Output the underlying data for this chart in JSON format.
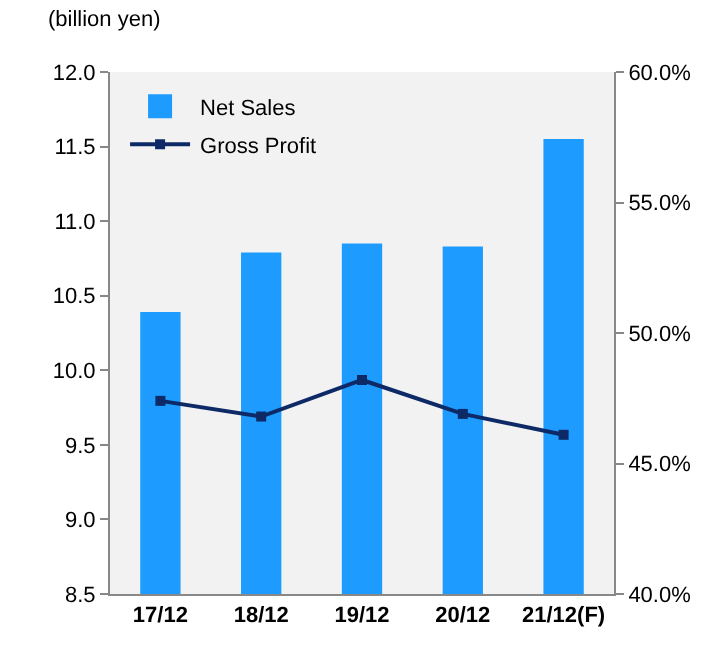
{
  "chart_data": {
    "type": "bar",
    "ylabel": "(billion yen)",
    "categories": [
      "17/12",
      "18/12",
      "19/12",
      "20/12",
      "21/12(F)"
    ],
    "series": [
      {
        "name": "Net Sales",
        "color": "#1e9bff",
        "values": [
          10.39,
          10.79,
          10.85,
          10.83,
          11.55
        ]
      },
      {
        "name": "Gross Profit",
        "type": "line",
        "axis": "y2",
        "color": "#0d2a66",
        "marker": "square",
        "values": [
          47.4,
          46.8,
          48.2,
          46.9,
          46.1
        ]
      }
    ],
    "ylim": [
      8.5,
      12.0
    ],
    "yticks": [
      {
        "value": 8.5,
        "label": "8.5"
      },
      {
        "value": 9,
        "label": "9.0"
      },
      {
        "value": 9.5,
        "label": "9.5"
      },
      {
        "value": 10,
        "label": "10.0"
      },
      {
        "value": 10.5,
        "label": "10.5"
      },
      {
        "value": 11,
        "label": "11.0"
      },
      {
        "value": 11.5,
        "label": "11.5"
      },
      {
        "value": 12,
        "label": "12.0"
      }
    ],
    "y2lim": [
      40,
      60
    ],
    "y2ticks": [
      {
        "value": 40,
        "label": "40.0%"
      },
      {
        "value": 45,
        "label": "45.0%"
      },
      {
        "value": 50,
        "label": "50.0%"
      },
      {
        "value": 55,
        "label": "55.0%"
      },
      {
        "value": 60,
        "label": "60.0%"
      }
    ],
    "grid": false,
    "legend": "top left"
  }
}
